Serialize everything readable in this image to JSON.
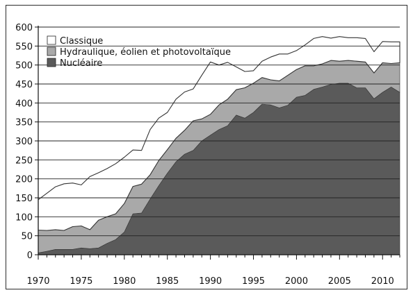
{
  "chart_data": {
    "type": "area",
    "stacked": true,
    "title": "",
    "xlabel": "",
    "ylabel": "",
    "ylim": [
      0,
      600
    ],
    "xlim": [
      1970,
      2012
    ],
    "yticks": [
      0,
      50,
      100,
      150,
      200,
      250,
      300,
      350,
      400,
      450,
      500,
      550,
      600
    ],
    "xticks": [
      1970,
      1975,
      1980,
      1985,
      1990,
      1995,
      2000,
      2005,
      2010
    ],
    "grid": "horizontal",
    "legend_position": "top-left",
    "x": [
      1970,
      1971,
      1972,
      1973,
      1974,
      1975,
      1976,
      1977,
      1978,
      1979,
      1980,
      1981,
      1982,
      1983,
      1984,
      1985,
      1986,
      1987,
      1988,
      1989,
      1990,
      1991,
      1992,
      1993,
      1994,
      1995,
      1996,
      1997,
      1998,
      1999,
      2000,
      2001,
      2002,
      2003,
      2004,
      2005,
      2006,
      2007,
      2008,
      2009,
      2010,
      2011,
      2012
    ],
    "series": [
      {
        "name": "Nucléaire",
        "color": "#5a5a5a",
        "values": [
          5,
          9,
          14,
          14,
          14,
          18,
          16,
          18,
          30,
          40,
          60,
          108,
          110,
          147,
          182,
          215,
          245,
          265,
          275,
          300,
          315,
          330,
          340,
          368,
          360,
          375,
          397,
          395,
          387,
          394,
          415,
          420,
          436,
          442,
          449,
          452,
          452,
          440,
          440,
          411,
          428,
          442,
          428
        ]
      },
      {
        "name": "Hydraulique, éolien et photovoltaïque",
        "color": "#a9a9a9",
        "values": [
          60,
          55,
          52,
          50,
          60,
          58,
          50,
          73,
          70,
          68,
          75,
          72,
          76,
          64,
          66,
          62,
          62,
          63,
          78,
          58,
          55,
          65,
          70,
          67,
          80,
          77,
          70,
          66,
          71,
          79,
          73,
          78,
          62,
          61,
          63,
          58,
          60,
          70,
          68,
          68,
          78,
          62,
          78
        ]
      },
      {
        "name": "Classique",
        "color": "#ffffff",
        "values": [
          80,
          98,
          113,
          123,
          115,
          108,
          140,
          125,
          127,
          132,
          122,
          96,
          89,
          119,
          112,
          98,
          103,
          101,
          84,
          115,
          138,
          105,
          97,
          60,
          43,
          33,
          43,
          60,
          71,
          56,
          50,
          55,
          72,
          72,
          59,
          65,
          60,
          62,
          62,
          56,
          56,
          57,
          55
        ]
      }
    ]
  }
}
